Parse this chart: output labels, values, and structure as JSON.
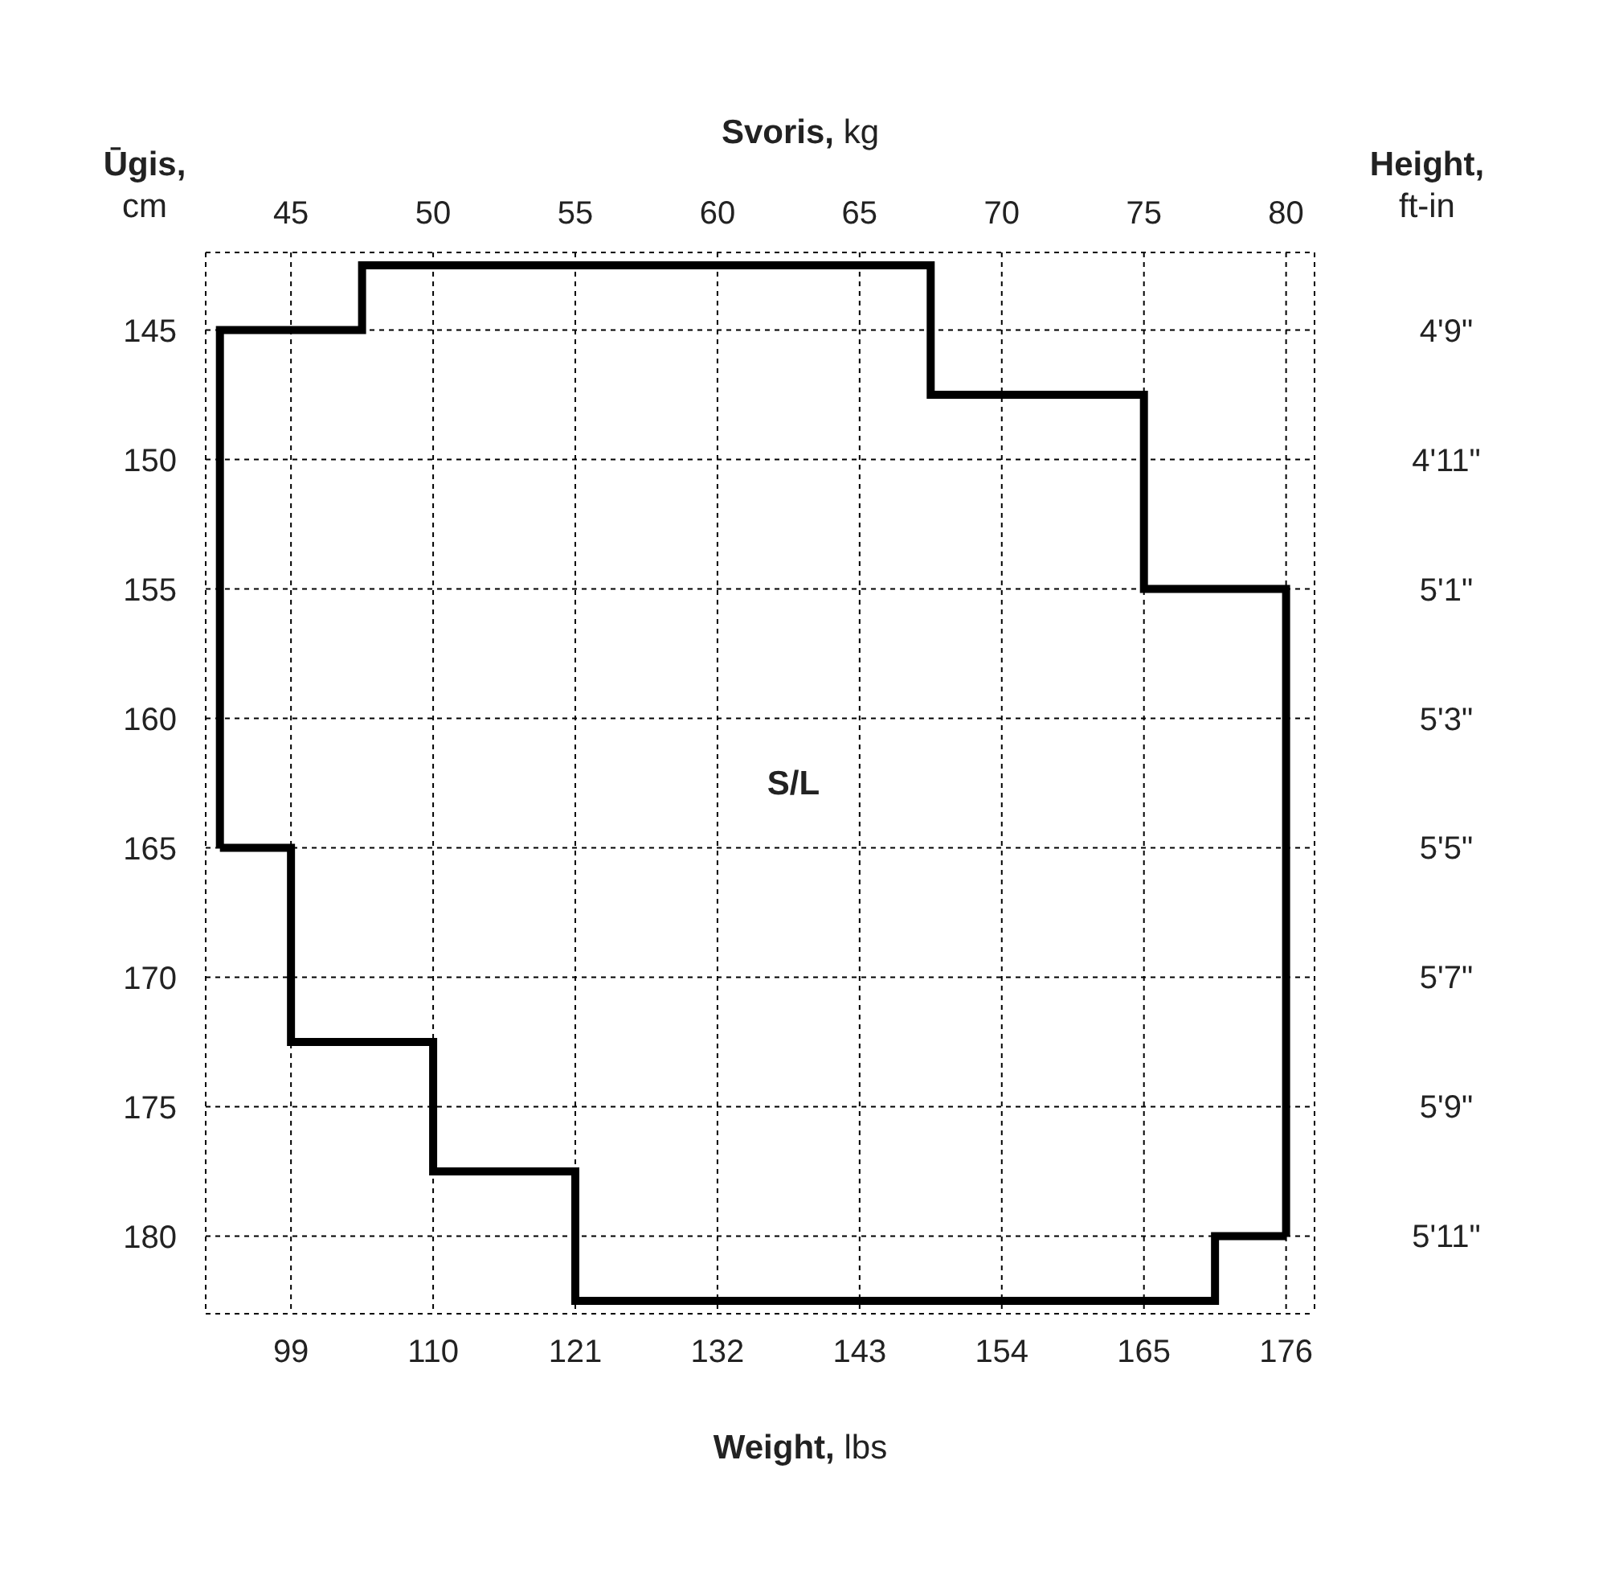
{
  "chart_data": {
    "type": "line",
    "xlabel": "Weight, lbs",
    "x2label": "Svoris, kg",
    "ylabel": "Ūgis, cm",
    "y2label": "Height, ft-in",
    "series": [
      {
        "color": "#000000",
        "x": [
          93.5,
          93.5,
          104.5,
          104.5,
          148.5,
          148.5,
          165,
          165,
          176,
          176
        ],
        "values": [
          165,
          145,
          145,
          142.5,
          142.5,
          147.5,
          147.5,
          155,
          155,
          180
        ]
      },
      {
        "color": "#000000",
        "x": [
          93.5,
          99,
          99,
          110,
          110,
          121,
          121,
          170.5,
          170.5,
          176
        ],
        "values": [
          165,
          165,
          172.5,
          172.5,
          177.5,
          177.5,
          182.5,
          182.5,
          180,
          180
        ]
      }
    ],
    "xlim": [
      92.4,
      178.2
    ],
    "xticks": [
      99,
      110,
      121,
      132,
      143,
      154,
      165,
      176
    ],
    "x2lim": [
      42,
      81
    ],
    "x2ticks": [
      45,
      50,
      55,
      60,
      65,
      70,
      75,
      80
    ],
    "ylim": [
      183,
      142
    ],
    "yticks": [
      145,
      150,
      155,
      160,
      165,
      170,
      175,
      180
    ],
    "y2_categories": [
      "4'9\"",
      "4'11\"",
      "5'1\"",
      "5'3\"",
      "5'5\"",
      "5'7\"",
      "5'9\"",
      "5'11\""
    ],
    "annotations": [
      "S/L"
    ],
    "grid": true,
    "marker": "none",
    "line_style": "solid"
  }
}
